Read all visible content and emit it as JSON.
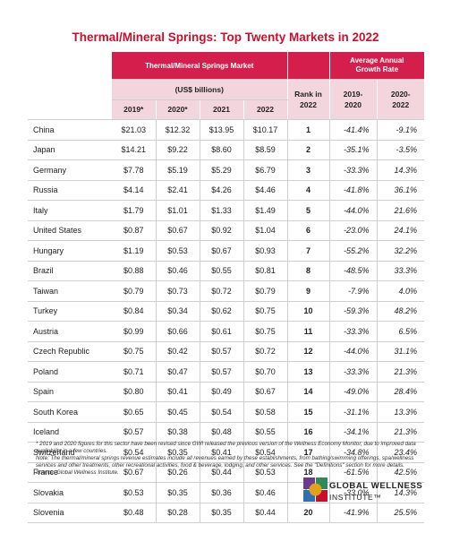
{
  "title": "Thermal/Mineral Springs: Top Twenty Markets in 2022",
  "header": {
    "market_group": "Thermal/Mineral Springs Market",
    "growth_group_line1": "Average Annual",
    "growth_group_line2": "Growth Rate",
    "units": "(US$ billions)",
    "rank_line1": "Rank in",
    "rank_line2": "2022",
    "years": [
      "2019*",
      "2020*",
      "2021",
      "2022"
    ],
    "growth_a_line1": "2019-",
    "growth_a_line2": "2020",
    "growth_b_line1": "2020-",
    "growth_b_line2": "2022"
  },
  "rows": [
    {
      "country": "China",
      "v2019": "$21.03",
      "v2020": "$12.32",
      "v2021": "$13.95",
      "v2022": "$10.17",
      "rank": "1",
      "g1": "-41.4%",
      "g2": "-9.1%"
    },
    {
      "country": "Japan",
      "v2019": "$14.21",
      "v2020": "$9.22",
      "v2021": "$8.60",
      "v2022": "$8.59",
      "rank": "2",
      "g1": "-35.1%",
      "g2": "-3.5%"
    },
    {
      "country": "Germany",
      "v2019": "$7.78",
      "v2020": "$5.19",
      "v2021": "$5.29",
      "v2022": "$6.79",
      "rank": "3",
      "g1": "-33.3%",
      "g2": "14.3%"
    },
    {
      "country": "Russia",
      "v2019": "$4.14",
      "v2020": "$2.41",
      "v2021": "$4.26",
      "v2022": "$4.46",
      "rank": "4",
      "g1": "-41.8%",
      "g2": "36.1%"
    },
    {
      "country": "Italy",
      "v2019": "$1.79",
      "v2020": "$1.01",
      "v2021": "$1.33",
      "v2022": "$1.49",
      "rank": "5",
      "g1": "-44.0%",
      "g2": "21.6%"
    },
    {
      "country": "United States",
      "v2019": "$0.87",
      "v2020": "$0.67",
      "v2021": "$0.92",
      "v2022": "$1.04",
      "rank": "6",
      "g1": "-23.0%",
      "g2": "24.1%"
    },
    {
      "country": "Hungary",
      "v2019": "$1.19",
      "v2020": "$0.53",
      "v2021": "$0.67",
      "v2022": "$0.93",
      "rank": "7",
      "g1": "-55.2%",
      "g2": "32.2%"
    },
    {
      "country": "Brazil",
      "v2019": "$0.88",
      "v2020": "$0.46",
      "v2021": "$0.55",
      "v2022": "$0.81",
      "rank": "8",
      "g1": "-48.5%",
      "g2": "33.3%"
    },
    {
      "country": "Taiwan",
      "v2019": "$0.79",
      "v2020": "$0.73",
      "v2021": "$0.72",
      "v2022": "$0.79",
      "rank": "9",
      "g1": "-7.9%",
      "g2": "4.0%"
    },
    {
      "country": "Turkey",
      "v2019": "$0.84",
      "v2020": "$0.34",
      "v2021": "$0.62",
      "v2022": "$0.75",
      "rank": "10",
      "g1": "-59.3%",
      "g2": "48.2%"
    },
    {
      "country": "Austria",
      "v2019": "$0.99",
      "v2020": "$0.66",
      "v2021": "$0.61",
      "v2022": "$0.75",
      "rank": "11",
      "g1": "-33.3%",
      "g2": "6.5%"
    },
    {
      "country": "Czech Republic",
      "v2019": "$0.75",
      "v2020": "$0.42",
      "v2021": "$0.57",
      "v2022": "$0.72",
      "rank": "12",
      "g1": "-44.0%",
      "g2": "31.1%"
    },
    {
      "country": "Poland",
      "v2019": "$0.71",
      "v2020": "$0.47",
      "v2021": "$0.57",
      "v2022": "$0.70",
      "rank": "13",
      "g1": "-33.3%",
      "g2": "21.3%"
    },
    {
      "country": "Spain",
      "v2019": "$0.80",
      "v2020": "$0.41",
      "v2021": "$0.49",
      "v2022": "$0.67",
      "rank": "14",
      "g1": "-49.0%",
      "g2": "28.4%"
    },
    {
      "country": "South Korea",
      "v2019": "$0.65",
      "v2020": "$0.45",
      "v2021": "$0.54",
      "v2022": "$0.58",
      "rank": "15",
      "g1": "-31.1%",
      "g2": "13.3%"
    },
    {
      "country": "Iceland",
      "v2019": "$0.57",
      "v2020": "$0.38",
      "v2021": "$0.48",
      "v2022": "$0.55",
      "rank": "16",
      "g1": "-34.1%",
      "g2": "21.3%"
    },
    {
      "country": "Switzerland",
      "v2019": "$0.54",
      "v2020": "$0.35",
      "v2021": "$0.41",
      "v2022": "$0.54",
      "rank": "17",
      "g1": "-34.8%",
      "g2": "23.4%"
    },
    {
      "country": "France",
      "v2019": "$0.67",
      "v2020": "$0.26",
      "v2021": "$0.44",
      "v2022": "$0.53",
      "rank": "18",
      "g1": "-61.5%",
      "g2": "42.5%"
    },
    {
      "country": "Slovakia",
      "v2019": "$0.53",
      "v2020": "$0.35",
      "v2021": "$0.36",
      "v2022": "$0.46",
      "rank": "19",
      "g1": "-33.0%",
      "g2": "14.3%"
    },
    {
      "country": "Slovenia",
      "v2019": "$0.48",
      "v2020": "$0.28",
      "v2021": "$0.35",
      "v2022": "$0.44",
      "rank": "20",
      "g1": "-41.9%",
      "g2": "25.5%"
    }
  ],
  "notes": [
    "* 2019 and 2020 figures for this sector have been revised since GWI released the previous version of the Wellness Economy Monitor, due to improved data availability in a few countries.",
    "Note: The thermal/mineral springs revenue estimates include all revenues earned by these establishments, from bathing/swimming offerings, spa/wellness services and other treatments, other recreational activities, food & beverage, lodging, and other services. See the \"Definitions\" section for more details.",
    "Source: Global Wellness Institute."
  ],
  "logo": {
    "line1": "GLOBAL WELLNESS",
    "line2": "INSTITUTE™",
    "colors": [
      "#6b3b8f",
      "#2e8b57",
      "#2f6fb5",
      "#c8102e",
      "#e0a21b"
    ]
  },
  "colors": {
    "accent": "#d41e4b",
    "title": "#c8102e",
    "header_tint": "#f3d5dd"
  }
}
